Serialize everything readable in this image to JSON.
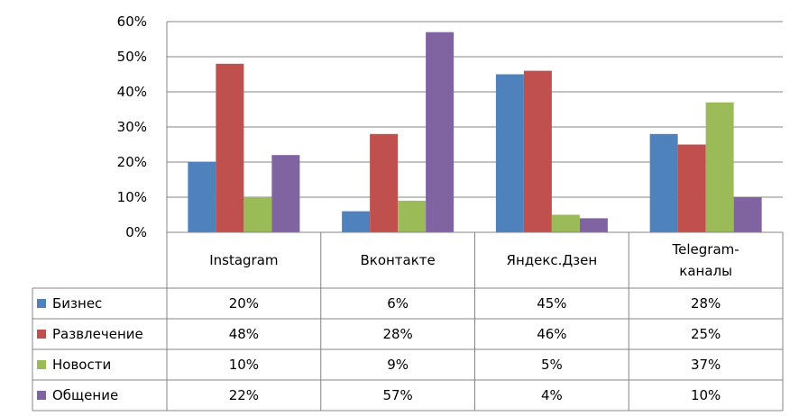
{
  "chart_data": {
    "type": "bar",
    "categories": [
      [
        "Instagram"
      ],
      [
        "Вконтакте"
      ],
      [
        "Яндекс.Дзен"
      ],
      [
        "Telegram-",
        "каналы"
      ]
    ],
    "series": [
      {
        "name": "Бизнес",
        "color": "#4f81bd",
        "values": [
          20,
          6,
          45,
          28
        ],
        "labels": [
          "20%",
          "6%",
          "45%",
          "28%"
        ]
      },
      {
        "name": "Развлечение",
        "color": "#c0504d",
        "values": [
          48,
          28,
          46,
          25
        ],
        "labels": [
          "48%",
          "28%",
          "46%",
          "25%"
        ]
      },
      {
        "name": "Новости",
        "color": "#9bbb59",
        "values": [
          10,
          9,
          5,
          37
        ],
        "labels": [
          "10%",
          "9%",
          "5%",
          "37%"
        ]
      },
      {
        "name": "Общение",
        "color": "#8064a2",
        "values": [
          22,
          57,
          4,
          10
        ],
        "labels": [
          "22%",
          "57%",
          "4%",
          "10%"
        ]
      }
    ],
    "y_ticks": [
      "0%",
      "10%",
      "20%",
      "30%",
      "40%",
      "50%",
      "60%"
    ],
    "ylim": [
      0,
      60
    ],
    "grid": true,
    "legend": "data-table-left"
  }
}
